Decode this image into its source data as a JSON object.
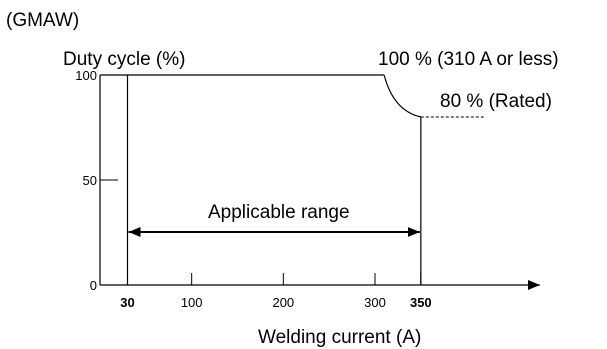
{
  "chart_data": {
    "type": "line",
    "title": "(GMAW)",
    "ylabel": "Duty cycle (%)",
    "xlabel": "Welding current (A)",
    "xlim": [
      0,
      480
    ],
    "ylim": [
      0,
      100
    ],
    "x_ticks": [
      {
        "value": 30,
        "label": "30",
        "bold": true
      },
      {
        "value": 100,
        "label": "100",
        "bold": false
      },
      {
        "value": 200,
        "label": "200",
        "bold": false
      },
      {
        "value": 300,
        "label": "300",
        "bold": false
      },
      {
        "value": 350,
        "label": "350",
        "bold": true
      }
    ],
    "y_ticks": [
      {
        "value": 0,
        "label": "0"
      },
      {
        "value": 50,
        "label": "50"
      },
      {
        "value": 100,
        "label": "100"
      }
    ],
    "series": [
      {
        "points": [
          {
            "x": 310,
            "y": 100
          },
          {
            "x": 320,
            "y": 94
          },
          {
            "x": 330,
            "y": 88
          },
          {
            "x": 340,
            "y": 84
          },
          {
            "x": 350,
            "y": 80
          }
        ]
      }
    ],
    "rated_extension": {
      "x_from": 350,
      "x_to": 420,
      "y": 80
    },
    "range_bounds": {
      "min": 30,
      "max": 350
    },
    "annotations": {
      "full_duty": "100 % (310 A or less)",
      "rated": "80 % (Rated)",
      "applicable_range": "Applicable range"
    }
  }
}
